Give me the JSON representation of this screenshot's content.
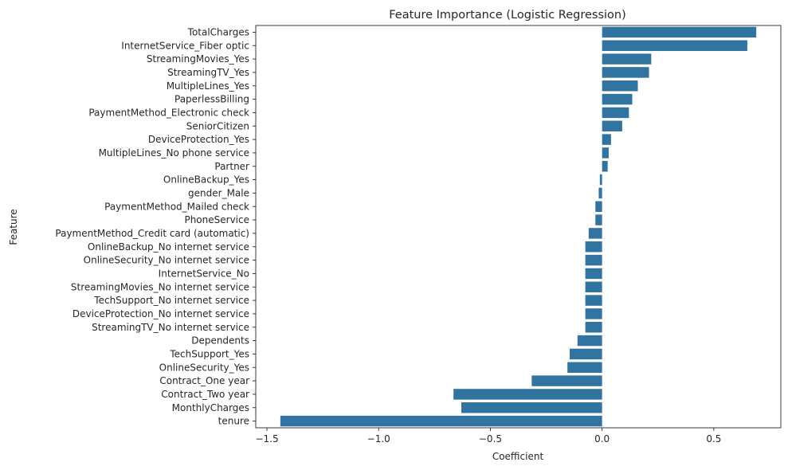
{
  "chart_data": {
    "type": "bar",
    "orientation": "horizontal",
    "title": "Feature Importance (Logistic Regression)",
    "xlabel": "Coefficient",
    "ylabel": "Feature",
    "xlim": [
      -1.55,
      0.8
    ],
    "xticks": [
      -1.5,
      -1.0,
      -0.5,
      0.0,
      0.5
    ],
    "xtick_labels": [
      "−1.5",
      "−1.0",
      "−0.5",
      "0.0",
      "0.5"
    ],
    "grid": false,
    "bar_color": "#3274a1",
    "categories": [
      "TotalCharges",
      "InternetService_Fiber optic",
      "StreamingMovies_Yes",
      "StreamingTV_Yes",
      "MultipleLines_Yes",
      "PaperlessBilling",
      "PaymentMethod_Electronic check",
      "SeniorCitizen",
      "DeviceProtection_Yes",
      "MultipleLines_No phone service",
      "Partner",
      "OnlineBackup_Yes",
      "gender_Male",
      "PaymentMethod_Mailed check",
      "PhoneService",
      "PaymentMethod_Credit card (automatic)",
      "OnlineBackup_No internet service",
      "OnlineSecurity_No internet service",
      "InternetService_No",
      "StreamingMovies_No internet service",
      "TechSupport_No internet service",
      "DeviceProtection_No internet service",
      "StreamingTV_No internet service",
      "Dependents",
      "TechSupport_Yes",
      "OnlineSecurity_Yes",
      "Contract_One year",
      "Contract_Two year",
      "MonthlyCharges",
      "tenure"
    ],
    "values": [
      0.69,
      0.65,
      0.22,
      0.21,
      0.16,
      0.135,
      0.12,
      0.09,
      0.04,
      0.03,
      0.025,
      -0.01,
      -0.015,
      -0.03,
      -0.03,
      -0.06,
      -0.075,
      -0.075,
      -0.075,
      -0.075,
      -0.075,
      -0.075,
      -0.075,
      -0.11,
      -0.145,
      -0.155,
      -0.315,
      -0.665,
      -0.63,
      -1.44
    ]
  }
}
